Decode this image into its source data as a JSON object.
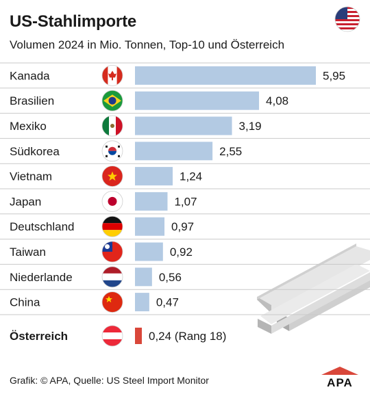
{
  "header": {
    "title": "US-Stahlimporte",
    "subtitle": "Volumen 2024 in Mio. Tonnen, Top-10 und Österreich"
  },
  "chart_data": {
    "type": "bar",
    "orientation": "horizontal",
    "categories": [
      "Kanada",
      "Brasilien",
      "Mexiko",
      "Südkorea",
      "Vietnam",
      "Japan",
      "Deutschland",
      "Taiwan",
      "Niederlande",
      "China",
      "Österreich"
    ],
    "values": [
      5.95,
      4.08,
      3.19,
      2.55,
      1.24,
      1.07,
      0.97,
      0.92,
      0.56,
      0.47,
      0.24
    ],
    "value_labels": [
      "5,95",
      "4,08",
      "3,19",
      "2,55",
      "1,24",
      "1,07",
      "0,97",
      "0,92",
      "0,56",
      "0,47",
      "0,24 (Rang 18)"
    ],
    "highlight": "Österreich",
    "flags": [
      "canada-flag",
      "brazil-flag",
      "mexico-flag",
      "south-korea-flag",
      "vietnam-flag",
      "japan-flag",
      "germany-flag",
      "taiwan-flag",
      "netherlands-flag",
      "china-flag",
      "austria-flag"
    ],
    "bar_color": "#b3cae3",
    "highlight_color": "#d9473a"
  },
  "footer": {
    "source": "Grafik: © APA, Quelle: US Steel Import Monitor",
    "logo": "APA"
  },
  "icons": {
    "header_flag": "usa-flag",
    "illustration": "steel-beam-illustration"
  }
}
